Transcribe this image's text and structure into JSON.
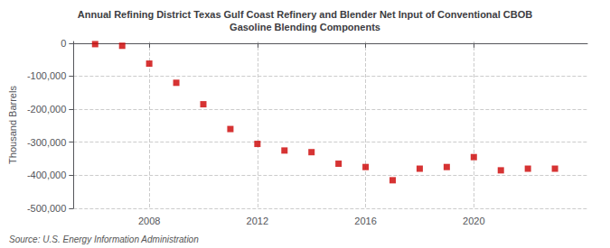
{
  "chart_data": {
    "type": "scatter",
    "title": "Annual Refining District Texas Gulf Coast Refinery and Blender Net Input of Conventional CBOB\nGasoline Blending Components",
    "ylabel": "Thousand Barrels",
    "source": "Source: U.S. Energy Information Administration",
    "x": [
      2006,
      2007,
      2008,
      2009,
      2010,
      2011,
      2012,
      2013,
      2014,
      2015,
      2016,
      2017,
      2018,
      2019,
      2020,
      2021,
      2022,
      2023
    ],
    "values": [
      -3000,
      -8000,
      -62000,
      -120000,
      -185000,
      -260000,
      -305000,
      -325000,
      -330000,
      -365000,
      -375000,
      -415000,
      -380000,
      -375000,
      -345000,
      -385000,
      -380000,
      -380000
    ],
    "color": "#cc0000",
    "marker": "square",
    "xlim": [
      2005.2,
      2024.2
    ],
    "xticks": [
      2008,
      2012,
      2016,
      2020
    ],
    "ylim": [
      -500000,
      5000
    ],
    "yticks": [
      0,
      {
        "value": -100000,
        "label": "-100,000"
      },
      {
        "value": -200000,
        "label": "-200,000"
      },
      {
        "value": -300000,
        "label": "-300,000"
      },
      {
        "value": -400000,
        "label": "-400,000"
      },
      {
        "value": -500000,
        "label": "-500,000"
      }
    ],
    "grid": true
  }
}
